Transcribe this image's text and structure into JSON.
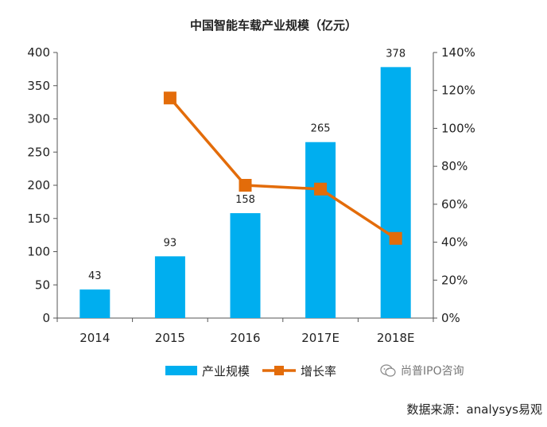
{
  "chart_data": {
    "type": "bar+line",
    "title": "中国智能车载产业规模（亿元）",
    "categories": [
      "2014",
      "2015",
      "2016",
      "2017E",
      "2018E"
    ],
    "series": [
      {
        "name": "产业规模",
        "type": "bar",
        "axis": "left",
        "values": [
          43,
          93,
          158,
          265,
          378
        ],
        "data_labels": [
          "43",
          "93",
          "158",
          "265",
          "378"
        ],
        "color": "#00AEEF"
      },
      {
        "name": "增长率",
        "type": "line",
        "axis": "right",
        "values": [
          null,
          116,
          70,
          68,
          42
        ],
        "color": "#E36C0A"
      }
    ],
    "y_left": {
      "min": 0,
      "max": 400,
      "ticks": [
        0,
        50,
        100,
        150,
        200,
        250,
        300,
        350,
        400
      ],
      "tick_labels": [
        "0",
        "50",
        "100",
        "150",
        "200",
        "250",
        "300",
        "350",
        "400"
      ]
    },
    "y_right": {
      "min": 0,
      "max": 140,
      "ticks": [
        0,
        20,
        40,
        60,
        80,
        100,
        120,
        140
      ],
      "tick_labels": [
        "0%",
        "20%",
        "40%",
        "60%",
        "80%",
        "100%",
        "120%",
        "140%"
      ]
    },
    "grid": false,
    "legend_position": "bottom"
  },
  "watermark": {
    "text": "尚普IPO咨询",
    "icon": "wechat-icon"
  },
  "source_note": "数据来源：analysys易观"
}
